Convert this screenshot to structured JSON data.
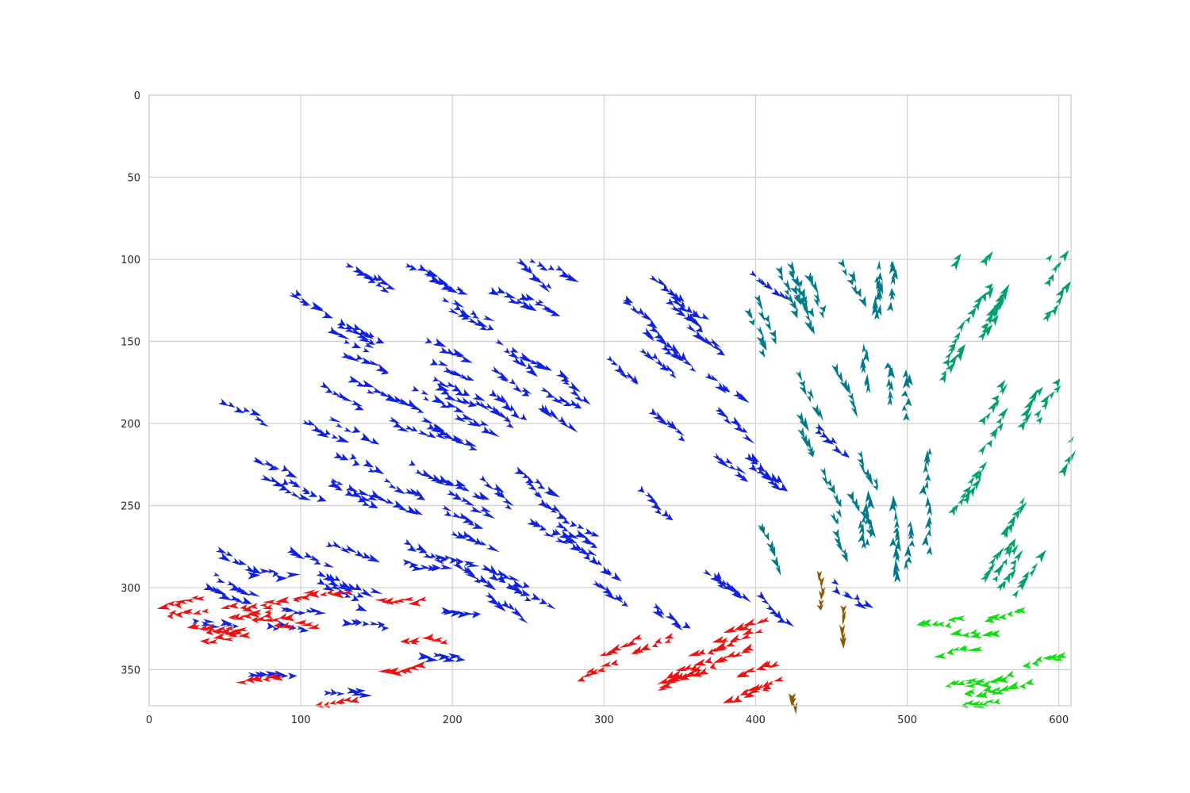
{
  "chart_data": {
    "type": "quiver",
    "title": "",
    "xlabel": "",
    "ylabel": "",
    "xlim": [
      0,
      608
    ],
    "ylim": [
      372,
      0
    ],
    "y_axis_inverted": true,
    "grid": true,
    "x_ticks": [
      "0",
      "100",
      "200",
      "300",
      "400",
      "500",
      "600"
    ],
    "y_ticks": [
      "0",
      "50",
      "100",
      "150",
      "200",
      "250",
      "300",
      "350"
    ],
    "colors": {
      "blue": "#1122dd",
      "red": "#ee1111",
      "teal": "#007a8a",
      "green": "#00a070",
      "lime": "#11dd11",
      "brown": "#8b5a00"
    },
    "flow_regions": [
      {
        "color": "blue",
        "x": [
          25,
          270
        ],
        "y": [
          100,
          300
        ],
        "dx": 1.0,
        "dy": 0.45,
        "count": 420
      },
      {
        "color": "blue",
        "x": [
          200,
          450
        ],
        "y": [
          100,
          310
        ],
        "dx": 0.8,
        "dy": 0.6,
        "count": 260
      },
      {
        "color": "blue",
        "x": [
          25,
          200
        ],
        "y": [
          280,
          372
        ],
        "dx": 1.0,
        "dy": 0.05,
        "count": 80
      },
      {
        "color": "red",
        "x": [
          25,
          200
        ],
        "y": [
          300,
          372
        ],
        "dx": -1.0,
        "dy": 0.1,
        "count": 110
      },
      {
        "color": "red",
        "x": [
          250,
          420
        ],
        "y": [
          315,
          372
        ],
        "dx": -1.0,
        "dy": 0.35,
        "count": 90
      },
      {
        "color": "teal",
        "x": [
          390,
          470
        ],
        "y": [
          100,
          260
        ],
        "dx": 0.45,
        "dy": 1.0,
        "count": 110
      },
      {
        "color": "teal",
        "x": [
          470,
          520
        ],
        "y": [
          100,
          300
        ],
        "dx": 0.05,
        "dy": -1.0,
        "count": 90
      },
      {
        "color": "green",
        "x": [
          520,
          608
        ],
        "y": [
          100,
          310
        ],
        "dx": 0.55,
        "dy": -0.85,
        "count": 170
      },
      {
        "color": "lime",
        "x": [
          530,
          608
        ],
        "y": [
          300,
          372
        ],
        "dx": -1.0,
        "dy": 0.15,
        "count": 70
      },
      {
        "color": "brown",
        "x": [
          420,
          560
        ],
        "y": [
          110,
          372
        ],
        "dx": 0.0,
        "dy": 1.0,
        "count": 18
      }
    ]
  }
}
